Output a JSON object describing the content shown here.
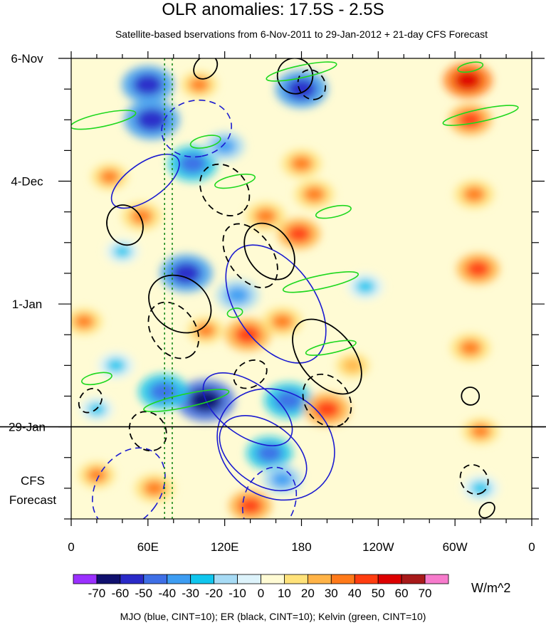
{
  "chart_data": {
    "type": "heatmap",
    "title": "OLR anomalies: 17.5S - 2.5S",
    "subtitle": "Satellite-based bservations from 6-Nov-2011 to 29-Jan-2012 + 21-day CFS Forecast",
    "x_ticks": [
      {
        "label": "0",
        "lon": 0
      },
      {
        "label": "60E",
        "lon": 60
      },
      {
        "label": "120E",
        "lon": 120
      },
      {
        "label": "180",
        "lon": 180
      },
      {
        "label": "120W",
        "lon": 240
      },
      {
        "label": "60W",
        "lon": 300
      },
      {
        "label": "0",
        "lon": 360
      }
    ],
    "y_ticks": [
      {
        "label": "6-Nov",
        "day": 0
      },
      {
        "label": "4-Dec",
        "day": 28
      },
      {
        "label": "1-Jan",
        "day": 56
      },
      {
        "label": "29-Jan",
        "day": 84
      }
    ],
    "forecast_label_line1": "CFS",
    "forecast_label_line2": "Forecast",
    "xlim": [
      0,
      360
    ],
    "ylim": [
      0,
      105
    ],
    "observation_end_day": 84,
    "colorbar": {
      "levels": [
        "-70",
        "-60",
        "-50",
        "-40",
        "-30",
        "-20",
        "-10",
        "0",
        "10",
        "20",
        "30",
        "40",
        "50",
        "60",
        "70"
      ],
      "colors": [
        "#9b30ff",
        "#10106e",
        "#2a2ac8",
        "#3e6fe6",
        "#3d9df2",
        "#10c6ee",
        "#a7dbf5",
        "#ddf3fb",
        "#fffbd4",
        "#ffe27a",
        "#ffb347",
        "#ff7a1a",
        "#ff3d10",
        "#dd0000",
        "#a81a1a",
        "#f77bcc"
      ],
      "units": "W/m^2"
    },
    "dashed_reference_lons": [
      73,
      79
    ],
    "contour_legend": "MJO (blue, CINT=10); ER (black, CINT=10); Kelvin (green, CINT=10)",
    "anomaly_blobs": [
      {
        "lon": 60,
        "day": 6,
        "v": -55
      },
      {
        "lon": 63,
        "day": 14,
        "v": -60
      },
      {
        "lon": 95,
        "day": 24,
        "v": -50
      },
      {
        "lon": 120,
        "day": 20,
        "v": -35
      },
      {
        "lon": 90,
        "day": 49,
        "v": -55
      },
      {
        "lon": 130,
        "day": 54,
        "v": -40
      },
      {
        "lon": 180,
        "day": 7,
        "v": -55
      },
      {
        "lon": 230,
        "day": 52,
        "v": -30
      },
      {
        "lon": 105,
        "day": 78,
        "v": -65
      },
      {
        "lon": 72,
        "day": 76,
        "v": -50
      },
      {
        "lon": 170,
        "day": 78,
        "v": -50
      },
      {
        "lon": 155,
        "day": 90,
        "v": -45
      },
      {
        "lon": 165,
        "day": 96,
        "v": -35
      },
      {
        "lon": 35,
        "day": 70,
        "v": -30
      },
      {
        "lon": 20,
        "day": 80,
        "v": -25
      },
      {
        "lon": 320,
        "day": 98,
        "v": -30
      },
      {
        "lon": 40,
        "day": 44,
        "v": -25
      },
      {
        "lon": 30,
        "day": 27,
        "v": 30
      },
      {
        "lon": 55,
        "day": 36,
        "v": 35
      },
      {
        "lon": 20,
        "day": 95,
        "v": 30
      },
      {
        "lon": 65,
        "day": 98,
        "v": 35
      },
      {
        "lon": 138,
        "day": 63,
        "v": 45
      },
      {
        "lon": 152,
        "day": 36,
        "v": 35
      },
      {
        "lon": 178,
        "day": 40,
        "v": 40
      },
      {
        "lon": 190,
        "day": 31,
        "v": 35
      },
      {
        "lon": 200,
        "day": 80,
        "v": 45
      },
      {
        "lon": 140,
        "day": 102,
        "v": 40
      },
      {
        "lon": 180,
        "day": 24,
        "v": 35
      },
      {
        "lon": 312,
        "day": 14,
        "v": 40
      },
      {
        "lon": 315,
        "day": 31,
        "v": 35
      },
      {
        "lon": 318,
        "day": 48,
        "v": 40
      },
      {
        "lon": 312,
        "day": 66,
        "v": 35
      },
      {
        "lon": 320,
        "day": 85,
        "v": 30
      },
      {
        "lon": 310,
        "day": 5,
        "v": 50
      },
      {
        "lon": 100,
        "day": 6,
        "v": 30
      },
      {
        "lon": 10,
        "day": 60,
        "v": 30
      },
      {
        "lon": 105,
        "day": 62,
        "v": 30
      },
      {
        "lon": 220,
        "day": 70,
        "v": 25
      },
      {
        "lon": 165,
        "day": 60,
        "v": 35
      }
    ],
    "contours": {
      "mjo_solid": [
        {
          "lon": 58,
          "day": 28,
          "rx": 14,
          "ry": 9,
          "angle": 55
        },
        {
          "lon": 160,
          "day": 56,
          "rx": 52,
          "ry": 9,
          "angle": 55
        },
        {
          "lon": 160,
          "day": 88,
          "rx": 48,
          "ry": 12,
          "angle": 35
        },
        {
          "lon": 150,
          "day": 90,
          "rx": 38,
          "ry": 7,
          "angle": 35
        },
        {
          "lon": 138,
          "day": 80,
          "rx": 40,
          "ry": 6,
          "angle": 35
        }
      ],
      "mjo_dashed": [
        {
          "lon": 45,
          "day": 98,
          "rx": 25,
          "ry": 10,
          "angle": 35
        },
        {
          "lon": 98,
          "day": 16,
          "rx": 22,
          "ry": 8,
          "angle": 80
        },
        {
          "lon": 155,
          "day": 101,
          "rx": 20,
          "ry": 8,
          "angle": 20
        }
      ],
      "er_solid": [
        {
          "lon": 42,
          "day": 38,
          "rx": 16,
          "ry": 4,
          "angle": 65
        },
        {
          "lon": 175,
          "day": 4,
          "rx": 14,
          "ry": 4,
          "angle": 60
        },
        {
          "lon": 155,
          "day": 44,
          "rx": 24,
          "ry": 5,
          "angle": 55
        },
        {
          "lon": 85,
          "day": 56,
          "rx": 26,
          "ry": 6,
          "angle": 35
        },
        {
          "lon": 200,
          "day": 68,
          "rx": 34,
          "ry": 6,
          "angle": 50
        },
        {
          "lon": 105,
          "day": 2,
          "rx": 8,
          "ry": 3,
          "angle": 45
        },
        {
          "lon": 312,
          "day": 77,
          "rx": 7,
          "ry": 2,
          "angle": 45
        },
        {
          "lon": 325,
          "day": 103,
          "rx": 5,
          "ry": 2,
          "angle": 45
        }
      ],
      "er_dashed": [
        {
          "lon": 120,
          "day": 30,
          "rx": 22,
          "ry": 5,
          "angle": 50
        },
        {
          "lon": 140,
          "day": 45,
          "rx": 28,
          "ry": 5,
          "angle": 55
        },
        {
          "lon": 188,
          "day": 6,
          "rx": 12,
          "ry": 3,
          "angle": 60
        },
        {
          "lon": 200,
          "day": 78,
          "rx": 22,
          "ry": 5,
          "angle": 55
        },
        {
          "lon": 80,
          "day": 62,
          "rx": 24,
          "ry": 5,
          "angle": 55
        },
        {
          "lon": 60,
          "day": 85,
          "rx": 16,
          "ry": 4,
          "angle": 55
        },
        {
          "lon": 315,
          "day": 96,
          "rx": 12,
          "ry": 3,
          "angle": 55
        },
        {
          "lon": 15,
          "day": 78,
          "rx": 8,
          "ry": 3,
          "angle": 40
        },
        {
          "lon": 140,
          "day": 72,
          "rx": 10,
          "ry": 4,
          "angle": 60
        }
      ],
      "kelvin": [
        {
          "lon": 25,
          "day": 14,
          "rx": 26,
          "ry": 1.5,
          "angle": -12
        },
        {
          "lon": 105,
          "day": 19,
          "rx": 12,
          "ry": 1.3,
          "angle": -12
        },
        {
          "lon": 128,
          "day": 28,
          "rx": 16,
          "ry": 1.3,
          "angle": -12
        },
        {
          "lon": 205,
          "day": 35,
          "rx": 14,
          "ry": 1.2,
          "angle": -12
        },
        {
          "lon": 180,
          "day": 3,
          "rx": 28,
          "ry": 1.4,
          "angle": -12
        },
        {
          "lon": 195,
          "day": 51,
          "rx": 30,
          "ry": 1.5,
          "angle": -12
        },
        {
          "lon": 203,
          "day": 66,
          "rx": 20,
          "ry": 1.2,
          "angle": -12
        },
        {
          "lon": 90,
          "day": 78,
          "rx": 34,
          "ry": 1.5,
          "angle": -12
        },
        {
          "lon": 20,
          "day": 73,
          "rx": 12,
          "ry": 1.2,
          "angle": -12
        },
        {
          "lon": 320,
          "day": 13,
          "rx": 30,
          "ry": 1.4,
          "angle": -12
        },
        {
          "lon": 312,
          "day": 2,
          "rx": 10,
          "ry": 1.0,
          "angle": -12
        },
        {
          "lon": 128,
          "day": 58,
          "rx": 6,
          "ry": 1.0,
          "angle": -12
        }
      ]
    }
  }
}
